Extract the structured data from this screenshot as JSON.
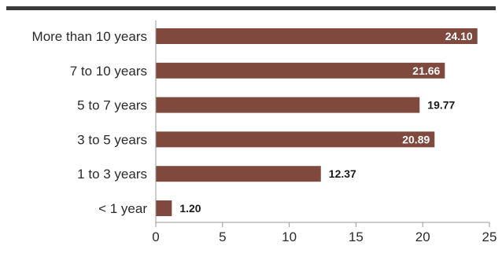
{
  "colors": {
    "bar": "#7f4a3d",
    "axis": "#9a9a9a",
    "rule": "#3a3a3a",
    "text": "#2b2b2b"
  },
  "chart_data": {
    "type": "bar",
    "orientation": "horizontal",
    "title": "",
    "xlabel": "",
    "ylabel": "",
    "categories": [
      "More than 10 years",
      "7 to 10 years",
      "5 to 7 years",
      "3 to 5 years",
      "1 to 3 years",
      "< 1 year"
    ],
    "values": [
      24.1,
      21.66,
      19.77,
      20.89,
      12.37,
      1.2
    ],
    "value_labels": [
      "24.10",
      "21.66",
      "19.77",
      "20.89",
      "12.37",
      "1.20"
    ],
    "xlim": [
      0,
      25
    ],
    "xticks": [
      0,
      5,
      10,
      15,
      20,
      25
    ],
    "xtick_labels": [
      "0",
      "5",
      "10",
      "15",
      "20",
      "25"
    ],
    "grid": false,
    "legend": "none"
  }
}
